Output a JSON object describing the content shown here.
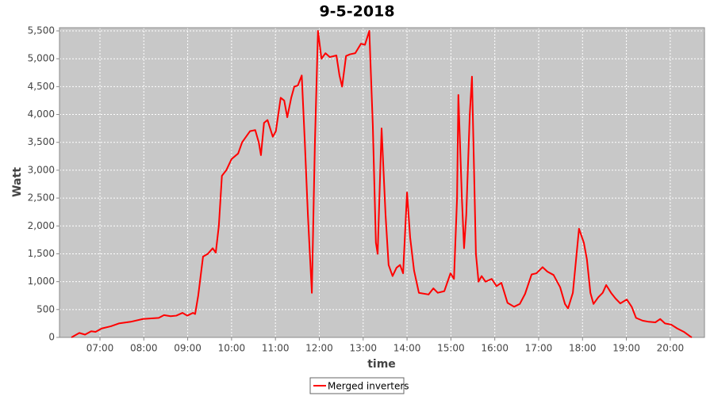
{
  "chart_data": {
    "type": "line",
    "title": "9-5-2018",
    "x_label": "time",
    "y_label": "Watt",
    "x": [
      6.35,
      6.53,
      6.66,
      6.8,
      6.9,
      7.04,
      7.25,
      7.43,
      7.7,
      7.98,
      8.34,
      8.46,
      8.61,
      8.74,
      8.88,
      8.99,
      9.12,
      9.17,
      9.24,
      9.35,
      9.46,
      9.57,
      9.64,
      9.71,
      9.78,
      9.88,
      10.0,
      10.15,
      10.24,
      10.42,
      10.54,
      10.62,
      10.67,
      10.74,
      10.82,
      10.94,
      11.01,
      11.12,
      11.2,
      11.27,
      11.36,
      11.43,
      11.51,
      11.6,
      11.67,
      11.74,
      11.83,
      11.9,
      11.97,
      12.05,
      12.14,
      12.24,
      12.39,
      12.46,
      12.52,
      12.61,
      12.7,
      12.82,
      12.95,
      13.04,
      13.14,
      13.22,
      13.29,
      13.33,
      13.42,
      13.51,
      13.58,
      13.67,
      13.76,
      13.84,
      13.91,
      14.0,
      14.07,
      14.16,
      14.27,
      14.49,
      14.6,
      14.7,
      14.85,
      14.99,
      15.07,
      15.14,
      15.17,
      15.25,
      15.3,
      15.35,
      15.43,
      15.48,
      15.57,
      15.63,
      15.7,
      15.79,
      15.93,
      16.04,
      16.15,
      16.29,
      16.44,
      16.57,
      16.69,
      16.84,
      16.95,
      17.09,
      17.2,
      17.34,
      17.49,
      17.6,
      17.67,
      17.78,
      17.92,
      18.03,
      18.1,
      18.18,
      18.25,
      18.36,
      18.46,
      18.54,
      18.65,
      18.75,
      18.86,
      19.01,
      19.12,
      19.22,
      19.37,
      19.51,
      19.66,
      19.77,
      19.88,
      20.02,
      20.16,
      20.31,
      20.45,
      20.49
    ],
    "series": [
      {
        "name": "Merged inverters",
        "color": "#ff0000",
        "values": [
          0,
          80,
          50,
          110,
          100,
          160,
          200,
          250,
          280,
          330,
          350,
          400,
          380,
          390,
          440,
          390,
          440,
          420,
          750,
          1450,
          1500,
          1600,
          1520,
          2000,
          2900,
          3000,
          3200,
          3300,
          3500,
          3700,
          3720,
          3500,
          3270,
          3850,
          3900,
          3600,
          3700,
          4300,
          4250,
          3950,
          4300,
          4500,
          4520,
          4700,
          3500,
          2200,
          800,
          3500,
          5500,
          5000,
          5100,
          5030,
          5060,
          4700,
          4500,
          5050,
          5080,
          5100,
          5270,
          5250,
          5500,
          3800,
          1700,
          1500,
          3750,
          2200,
          1300,
          1100,
          1250,
          1300,
          1150,
          2600,
          1800,
          1200,
          800,
          770,
          880,
          800,
          830,
          1150,
          1050,
          2500,
          4350,
          2500,
          1600,
          2200,
          4000,
          4680,
          1500,
          1000,
          1100,
          1000,
          1050,
          920,
          980,
          620,
          550,
          600,
          780,
          1130,
          1150,
          1260,
          1180,
          1120,
          900,
          600,
          520,
          800,
          1950,
          1700,
          1400,
          800,
          600,
          720,
          800,
          940,
          800,
          700,
          610,
          680,
          550,
          350,
          300,
          280,
          270,
          330,
          250,
          230,
          160,
          100,
          20,
          0
        ]
      }
    ],
    "xlim": [
      6.078,
      20.78
    ],
    "ylim": [
      0,
      5557
    ],
    "xticks": [
      {
        "value": 7,
        "label": "07:00"
      },
      {
        "value": 8,
        "label": "08:00"
      },
      {
        "value": 9,
        "label": "09:00"
      },
      {
        "value": 10,
        "label": "10:00"
      },
      {
        "value": 11,
        "label": "11:00"
      },
      {
        "value": 12,
        "label": "12:00"
      },
      {
        "value": 13,
        "label": "13:00"
      },
      {
        "value": 14,
        "label": "14:00"
      },
      {
        "value": 15,
        "label": "15:00"
      },
      {
        "value": 16,
        "label": "16:00"
      },
      {
        "value": 17,
        "label": "17:00"
      },
      {
        "value": 18,
        "label": "18:00"
      },
      {
        "value": 19,
        "label": "19:00"
      },
      {
        "value": 20,
        "label": "20:00"
      }
    ],
    "yticks": [
      0,
      500,
      {
        "value": 1000,
        "label": "1,000"
      },
      {
        "value": 1500,
        "label": "1,500"
      },
      {
        "value": 2000,
        "label": "2,000"
      },
      {
        "value": 2500,
        "label": "2,500"
      },
      {
        "value": 3000,
        "label": "3,000"
      },
      {
        "value": 3500,
        "label": "3,500"
      },
      {
        "value": 4000,
        "label": "4,000"
      },
      {
        "value": 4500,
        "label": "4,500"
      },
      {
        "value": 5000,
        "label": "5,000"
      },
      {
        "value": 5500,
        "label": "5,500"
      }
    ],
    "grid": true,
    "legend": "bottom"
  }
}
